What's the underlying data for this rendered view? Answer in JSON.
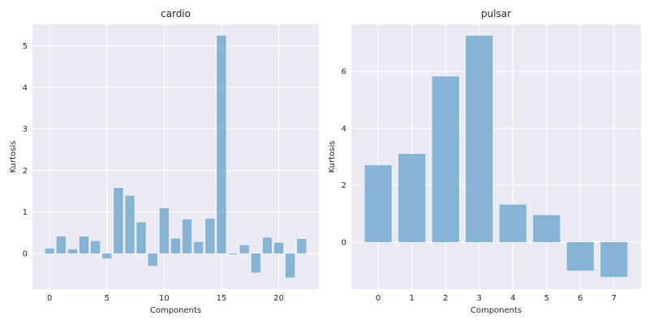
{
  "chart_data": [
    {
      "type": "bar",
      "title": "cardio",
      "xlabel": "Components",
      "ylabel": "Kurtosis",
      "categories": [
        0,
        1,
        2,
        3,
        4,
        5,
        6,
        7,
        8,
        9,
        10,
        11,
        12,
        13,
        14,
        15,
        16,
        17,
        18,
        19,
        20,
        21,
        22
      ],
      "values": [
        0.12,
        0.41,
        0.1,
        0.41,
        0.3,
        -0.12,
        1.58,
        1.39,
        0.75,
        -0.3,
        1.09,
        0.36,
        0.82,
        0.28,
        0.84,
        5.25,
        -0.02,
        0.2,
        -0.46,
        0.38,
        0.26,
        -0.58,
        0.35
      ],
      "xlim": [
        -1.5,
        23.5
      ],
      "ylim": [
        -0.86,
        5.52
      ],
      "xticks": [
        0,
        5,
        10,
        15,
        20
      ],
      "yticks": [
        0,
        1,
        2,
        3,
        4,
        5
      ],
      "grid": true
    },
    {
      "type": "bar",
      "title": "pulsar",
      "xlabel": "Components",
      "ylabel": "Kurtosis",
      "categories": [
        0,
        1,
        2,
        3,
        4,
        5,
        6,
        7
      ],
      "values": [
        2.7,
        3.1,
        5.82,
        7.25,
        1.32,
        0.95,
        -1.0,
        -1.22
      ],
      "xlim": [
        -0.8,
        7.8
      ],
      "ylim": [
        -1.65,
        7.65
      ],
      "xticks": [
        0,
        1,
        2,
        3,
        4,
        5,
        6,
        7
      ],
      "yticks": [
        0,
        2,
        4,
        6
      ],
      "grid": true
    }
  ]
}
